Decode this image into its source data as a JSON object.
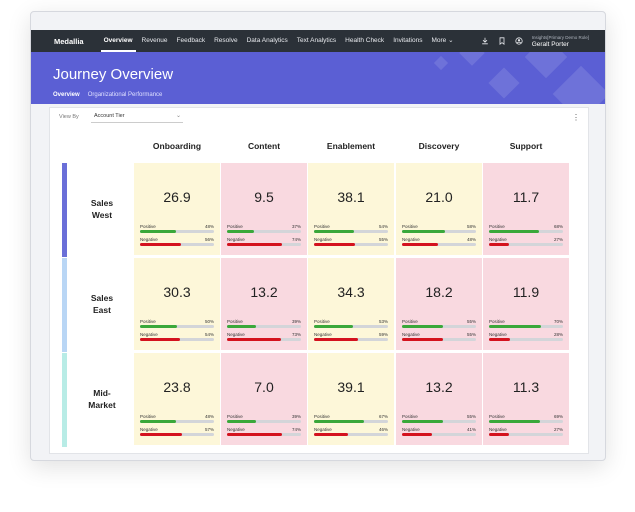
{
  "nav": {
    "logo": "Medallia",
    "items": [
      "Overview",
      "Revenue",
      "Feedback",
      "Resolve",
      "Data Analytics",
      "Text Analytics",
      "Health Check",
      "Invitations",
      "More"
    ],
    "active": "Overview",
    "user_role": "Insights[Primary Demo Role]",
    "user_name": "Geralt Porter"
  },
  "banner": {
    "title": "Journey Overview",
    "tabs": [
      "Overview",
      "Organizational Performance"
    ]
  },
  "filter": {
    "view_by_label": "View By",
    "selected": "Account Tier"
  },
  "columns": [
    "Onboarding",
    "Content",
    "Enablement",
    "Discovery",
    "Support"
  ],
  "colors": {
    "yellow": "#fdf7d9",
    "red": "#f9d9e0",
    "positive": "#3aa83a",
    "negative": "#d4121e",
    "banner": "#5b5fd4"
  },
  "rows": [
    {
      "label_line1": "Sales",
      "label_line2": "West",
      "bar_color": "#6a6fd8",
      "cells": [
        {
          "score": "26.9",
          "status": "yellow",
          "positive_label": "Positive",
          "positive": "48%",
          "positive_value": 48,
          "negative_label": "Negative",
          "negative": "56%",
          "negative_value": 56
        },
        {
          "score": "9.5",
          "status": "red",
          "positive_label": "Positive",
          "positive": "37%",
          "positive_value": 37,
          "negative_label": "Negative",
          "negative": "74%",
          "negative_value": 74
        },
        {
          "score": "38.1",
          "status": "yellow",
          "positive_label": "Positive",
          "positive": "54%",
          "positive_value": 54,
          "negative_label": "Negative",
          "negative": "55%",
          "negative_value": 55
        },
        {
          "score": "21.0",
          "status": "yellow",
          "positive_label": "Positive",
          "positive": "58%",
          "positive_value": 58,
          "negative_label": "Negative",
          "negative": "48%",
          "negative_value": 48
        },
        {
          "score": "11.7",
          "status": "red",
          "positive_label": "Positive",
          "positive": "68%",
          "positive_value": 68,
          "negative_label": "Negative",
          "negative": "27%",
          "negative_value": 27
        }
      ]
    },
    {
      "label_line1": "Sales",
      "label_line2": "East",
      "bar_color": "#b9d6f5",
      "cells": [
        {
          "score": "30.3",
          "status": "yellow",
          "positive_label": "Positive",
          "positive": "50%",
          "positive_value": 50,
          "negative_label": "Negative",
          "negative": "54%",
          "negative_value": 54
        },
        {
          "score": "13.2",
          "status": "red",
          "positive_label": "Positive",
          "positive": "39%",
          "positive_value": 39,
          "negative_label": "Negative",
          "negative": "73%",
          "negative_value": 73
        },
        {
          "score": "34.3",
          "status": "yellow",
          "positive_label": "Positive",
          "positive": "53%",
          "positive_value": 53,
          "negative_label": "Negative",
          "negative": "59%",
          "negative_value": 59
        },
        {
          "score": "18.2",
          "status": "red",
          "positive_label": "Positive",
          "positive": "55%",
          "positive_value": 55,
          "negative_label": "Negative",
          "negative": "55%",
          "negative_value": 55
        },
        {
          "score": "11.9",
          "status": "red",
          "positive_label": "Positive",
          "positive": "70%",
          "positive_value": 70,
          "negative_label": "Negative",
          "negative": "28%",
          "negative_value": 28
        }
      ]
    },
    {
      "label_line1": "Mid-",
      "label_line2": "Market",
      "bar_color": "#b8ece6",
      "cells": [
        {
          "score": "23.8",
          "status": "yellow",
          "positive_label": "Positive",
          "positive": "48%",
          "positive_value": 48,
          "negative_label": "Negative",
          "negative": "57%",
          "negative_value": 57
        },
        {
          "score": "7.0",
          "status": "red",
          "positive_label": "Positive",
          "positive": "39%",
          "positive_value": 39,
          "negative_label": "Negative",
          "negative": "74%",
          "negative_value": 74
        },
        {
          "score": "39.1",
          "status": "yellow",
          "positive_label": "Positive",
          "positive": "67%",
          "positive_value": 67,
          "negative_label": "Negative",
          "negative": "46%",
          "negative_value": 46
        },
        {
          "score": "13.2",
          "status": "red",
          "positive_label": "Positive",
          "positive": "55%",
          "positive_value": 55,
          "negative_label": "Negative",
          "negative": "41%",
          "negative_value": 41
        },
        {
          "score": "11.3",
          "status": "red",
          "positive_label": "Positive",
          "positive": "69%",
          "positive_value": 69,
          "negative_label": "Negative",
          "negative": "27%",
          "negative_value": 27
        }
      ]
    }
  ]
}
